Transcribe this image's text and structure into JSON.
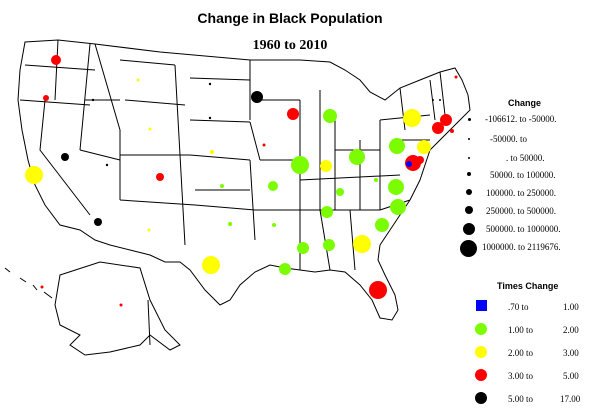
{
  "title": "Change in Black Population",
  "subtitle": "1960 to 2010",
  "size_legend": {
    "title": "Change",
    "rows": [
      "-106612. to  -50000.",
      "-50000. to",
      ". to  50000.",
      "50000. to  100000.",
      "100000. to  250000.",
      "250000. to  500000.",
      "500000. to 1000000.",
      "1000000. to 2119676."
    ]
  },
  "color_legend": {
    "title": "Times Change",
    "rows": [
      {
        "from": ".70 to",
        "to": "1.00",
        "color": "#0000ff"
      },
      {
        "from": "1.00 to",
        "to": "2.00",
        "color": "#7cfc00"
      },
      {
        "from": "2.00 to",
        "to": "3.00",
        "color": "#ffff00"
      },
      {
        "from": "3.00 to",
        "to": "5.00",
        "color": "#ff0000"
      },
      {
        "from": "5.00 to",
        "to": "17.00",
        "color": "#000000"
      }
    ]
  },
  "colors": {
    "blue": "#0000ff",
    "green": "#7cfc00",
    "yellow": "#ffff00",
    "red": "#ff0000",
    "black": "#000000"
  }
}
